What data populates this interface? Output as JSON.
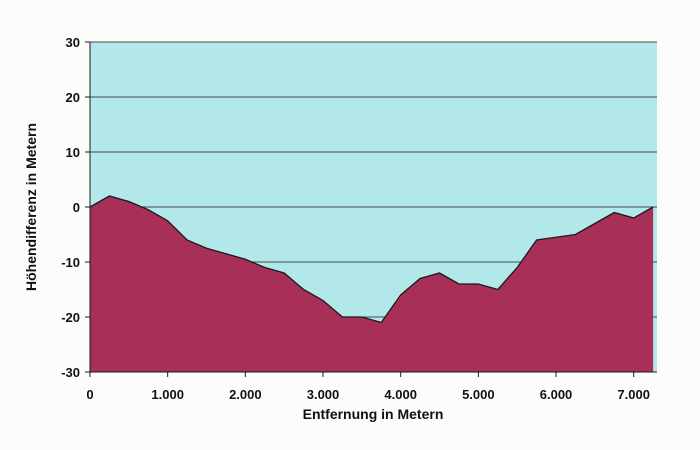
{
  "chart_data": {
    "type": "area",
    "title": "",
    "xlabel": "Entfernung in Metern",
    "ylabel": "Höhendifferenz in Metern",
    "xlim": [
      0,
      7300
    ],
    "ylim": [
      -30,
      30
    ],
    "x_ticks": [
      0,
      1000,
      2000,
      3000,
      4000,
      5000,
      6000,
      7000
    ],
    "x_tick_labels": [
      "0",
      "1.000",
      "2.000",
      "3.000",
      "4.000",
      "5.000",
      "6.000",
      "7.000"
    ],
    "y_ticks": [
      -30,
      -20,
      -10,
      0,
      10,
      20,
      30
    ],
    "y_tick_labels": [
      "-30",
      "-20",
      "-10",
      "0",
      "10",
      "20",
      "30"
    ],
    "grid": "horizontal",
    "legend": "none",
    "colors": {
      "plot_background": "#b3e8ea",
      "area_fill": "#a83058",
      "line": "#1a1a1a",
      "gridline": "#1a1a1a"
    },
    "series": [
      {
        "x": [
          0,
          250,
          500,
          750,
          1000,
          1250,
          1500,
          1750,
          2000,
          2250,
          2500,
          2750,
          3000,
          3250,
          3500,
          3750,
          4000,
          4250,
          4500,
          4750,
          5000,
          5250,
          5500,
          5750,
          6000,
          6250,
          6500,
          6750,
          7000,
          7250
        ],
        "values": [
          0,
          2,
          1,
          -0.5,
          -2.5,
          -6,
          -7.5,
          -8.5,
          -9.5,
          -11,
          -12,
          -15,
          -17,
          -20,
          -20,
          -21,
          -16,
          -13,
          -12,
          -14,
          -14,
          -15,
          -11,
          -6,
          -5.5,
          -5,
          -3,
          -1,
          -2,
          0
        ]
      }
    ]
  }
}
